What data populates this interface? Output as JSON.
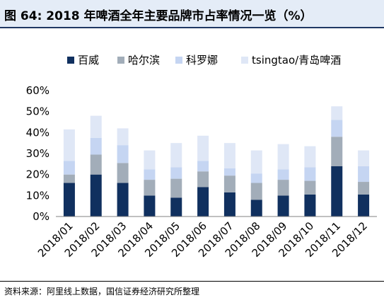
{
  "figure": {
    "title": "图 64:  2018 年啤酒全年主要品牌市占率情况一览（%）",
    "source": "资料来源：阿里线上数据，国信证券经济研究所整理"
  },
  "chart_data": {
    "type": "bar",
    "stacked": true,
    "categories": [
      "2018/01",
      "2018/02",
      "2018/03",
      "2018/04",
      "2018/05",
      "2018/06",
      "2018/07",
      "2018/08",
      "2018/09",
      "2018/10",
      "2018/11",
      "2018/12"
    ],
    "series": [
      {
        "name": "百威",
        "color": "#10305f",
        "values": [
          16,
          20,
          16,
          10,
          9,
          14,
          11.5,
          8,
          10,
          10.5,
          24,
          10.5
        ]
      },
      {
        "name": "哈尔滨",
        "color": "#a2adb9",
        "values": [
          4,
          9.5,
          9.5,
          7.5,
          9,
          7.5,
          8,
          8,
          7.5,
          6.5,
          14,
          6
        ]
      },
      {
        "name": "科罗娜",
        "color": "#c5d5f2",
        "values": [
          6.5,
          8,
          8.5,
          5,
          5.5,
          5,
          3.5,
          4.5,
          5,
          6.5,
          8,
          7.5
        ]
      },
      {
        "name": "tsingtao/青岛啤酒",
        "color": "#dfe7f6",
        "values": [
          15,
          10.5,
          8,
          9,
          11.5,
          12,
          12,
          11,
          12,
          10,
          6.5,
          7.5
        ]
      }
    ],
    "ylim": [
      0,
      60
    ],
    "yticks": [
      "0%",
      "10%",
      "20%",
      "30%",
      "40%",
      "50%",
      "60%"
    ],
    "grid": false,
    "legend": "top"
  }
}
